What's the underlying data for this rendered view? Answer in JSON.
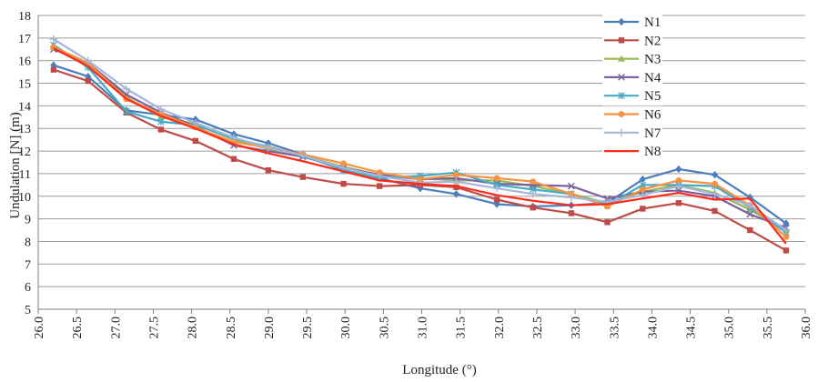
{
  "chart_data": {
    "type": "line",
    "xlabel": "Longitude (°)",
    "ylabel": "Undulation [N] (m)",
    "xlim": [
      26.0,
      36.0
    ],
    "ylim": [
      5,
      18
    ],
    "x_ticks": [
      "26.0",
      "26.5",
      "27.0",
      "27.5",
      "28.0",
      "28.5",
      "29.0",
      "29.5",
      "30.0",
      "30.5",
      "31.0",
      "31.5",
      "32.0",
      "32.5",
      "33.0",
      "33.5",
      "34.0",
      "34.5",
      "35.0",
      "35.5",
      "36.0"
    ],
    "y_ticks": [
      "5",
      "6",
      "7",
      "8",
      "9",
      "10",
      "11",
      "12",
      "13",
      "14",
      "15",
      "16",
      "17",
      "18"
    ],
    "grid": "horizontal",
    "legend_position": "top-right",
    "x": [
      26.2,
      26.65,
      27.15,
      27.6,
      28.05,
      28.55,
      29.0,
      29.45,
      29.98,
      30.45,
      30.98,
      31.45,
      31.98,
      32.45,
      32.95,
      33.42,
      33.88,
      34.35,
      34.82,
      35.28,
      35.75
    ],
    "series": [
      {
        "name": "N1",
        "color": "#4a7ebb",
        "marker": "diamond",
        "values": [
          15.8,
          15.3,
          13.8,
          13.6,
          13.4,
          12.75,
          12.35,
          11.85,
          11.15,
          10.8,
          10.35,
          10.1,
          9.65,
          9.55,
          9.6,
          9.7,
          10.75,
          11.2,
          10.95,
          9.95,
          8.8
        ]
      },
      {
        "name": "N2",
        "color": "#be4b48",
        "marker": "square",
        "values": [
          15.6,
          15.1,
          13.7,
          12.95,
          12.45,
          11.65,
          11.15,
          10.85,
          10.55,
          10.45,
          10.5,
          10.4,
          9.85,
          9.5,
          9.25,
          8.85,
          9.45,
          9.7,
          9.35,
          8.5,
          7.6
        ]
      },
      {
        "name": "N3",
        "color": "#98b954",
        "marker": "triangle",
        "values": [
          16.6,
          15.8,
          14.4,
          13.5,
          13.2,
          12.5,
          12.1,
          11.8,
          11.3,
          10.95,
          10.8,
          10.7,
          10.7,
          10.45,
          10.1,
          9.7,
          10.2,
          10.5,
          10.15,
          9.4,
          8.5
        ]
      },
      {
        "name": "N4",
        "color": "#7d60a0",
        "marker": "x",
        "values": [
          16.5,
          15.9,
          14.5,
          13.7,
          13.1,
          12.25,
          12.0,
          11.75,
          11.25,
          10.95,
          10.75,
          10.8,
          10.55,
          10.5,
          10.45,
          9.9,
          10.2,
          10.25,
          10.0,
          9.2,
          8.6
        ]
      },
      {
        "name": "N5",
        "color": "#46aac5",
        "marker": "asterisk",
        "values": [
          16.7,
          15.7,
          13.75,
          13.3,
          13.15,
          12.55,
          12.2,
          11.8,
          11.15,
          10.8,
          10.9,
          11.05,
          10.5,
          10.3,
          10.1,
          9.6,
          10.5,
          10.5,
          10.45,
          9.5,
          8.4
        ]
      },
      {
        "name": "N6",
        "color": "#f69240",
        "marker": "circle",
        "values": [
          16.6,
          15.9,
          14.3,
          13.65,
          13.05,
          12.4,
          12.15,
          11.85,
          11.45,
          11.05,
          10.75,
          10.95,
          10.8,
          10.65,
          10.1,
          9.55,
          10.3,
          10.7,
          10.55,
          9.6,
          8.2
        ]
      },
      {
        "name": "N7",
        "color": "#a5b6d8",
        "marker": "plus",
        "values": [
          16.95,
          16.0,
          14.75,
          13.85,
          13.25,
          12.6,
          12.15,
          11.8,
          11.25,
          10.9,
          10.6,
          10.65,
          10.35,
          10.1,
          9.95,
          9.75,
          10.05,
          10.45,
          10.1,
          9.6,
          8.5
        ]
      },
      {
        "name": "N8",
        "color": "#ff2a1a",
        "marker": "none",
        "values": [
          16.55,
          15.75,
          14.3,
          13.55,
          13.0,
          12.3,
          11.9,
          11.55,
          11.1,
          10.7,
          10.55,
          10.45,
          10.05,
          9.8,
          9.6,
          9.65,
          9.9,
          10.15,
          9.85,
          9.9,
          7.9
        ]
      }
    ]
  }
}
